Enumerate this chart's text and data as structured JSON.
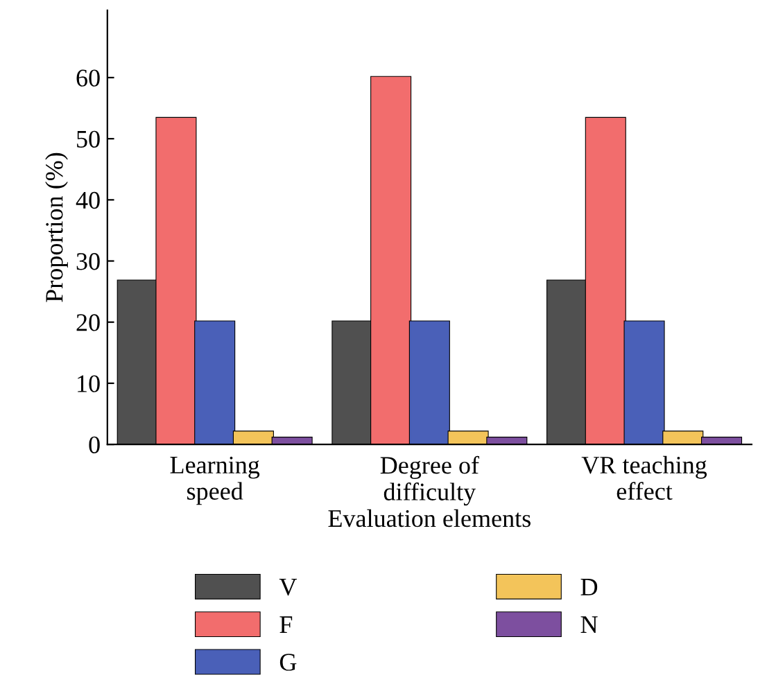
{
  "chart_data": {
    "type": "bar",
    "xlabel": "Evaluation elements",
    "ylabel": "Proportion (%)",
    "categories": [
      "Learning\nspeed",
      "Degree of\ndifficulty",
      "VR teaching\neffect"
    ],
    "series": [
      {
        "name": "V",
        "color": "#505050",
        "values": [
          26.7,
          20,
          26.7
        ]
      },
      {
        "name": "F",
        "color": "#f26d6d",
        "values": [
          53.3,
          60,
          53.3
        ]
      },
      {
        "name": "G",
        "color": "#4a60b8",
        "values": [
          20,
          20,
          20
        ]
      },
      {
        "name": "D",
        "color": "#f3c45a",
        "values": [
          2,
          2,
          2
        ]
      },
      {
        "name": "N",
        "color": "#7d4f9f",
        "values": [
          1,
          1,
          1
        ]
      }
    ],
    "ylim": [
      0,
      71
    ],
    "yticks": [
      0,
      10,
      20,
      30,
      40,
      50,
      60
    ],
    "grid": false,
    "legend": "bottom"
  }
}
